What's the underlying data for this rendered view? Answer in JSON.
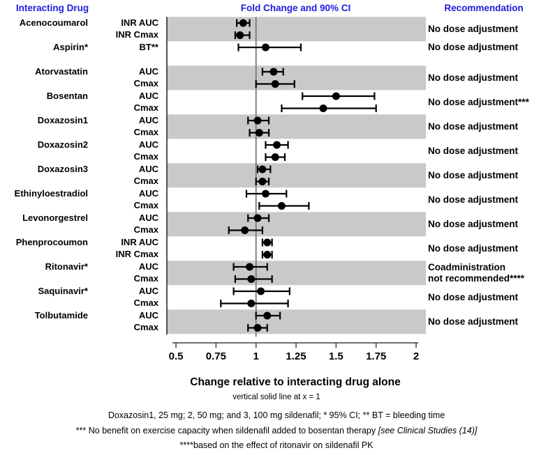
{
  "colors": {
    "header_blue": "#1c1ce0",
    "band_gray": "#c9c9c9",
    "marker_black": "#000000",
    "reference_line_gray": "#787878",
    "border_dark": "#3f3f3f"
  },
  "headers": {
    "left": "Interacting Drug",
    "center": "Fold Change and 90% CI",
    "right": "Recommendation"
  },
  "chart_data": {
    "type": "scatter",
    "subtype": "forest-plot-with-90pct-CI",
    "title": "Fold Change and 90% CI",
    "xlabel": "Change relative to interacting drug alone",
    "x_tick_labels": [
      "0.5",
      "0.75",
      "1",
      "1.25",
      "1.5",
      "1.75",
      "2"
    ],
    "x_tick_values": [
      0.5,
      0.75,
      1,
      1.25,
      1.5,
      1.75,
      2
    ],
    "xlim": [
      0.44,
      2.06
    ],
    "reference_line_x": 1,
    "grid": false,
    "rows": [
      {
        "drug": "Acenocoumarol",
        "metric": "INR AUC",
        "value": 0.92,
        "lo": 0.88,
        "hi": 0.96,
        "shaded": true,
        "spacer": false
      },
      {
        "drug": "",
        "metric": "INR Cmax",
        "value": 0.9,
        "lo": 0.87,
        "hi": 0.96,
        "shaded": true,
        "spacer": false
      },
      {
        "drug": "Aspirin*",
        "metric": "BT**",
        "value": 1.06,
        "lo": 0.89,
        "hi": 1.28,
        "shaded": false,
        "spacer": false
      },
      {
        "drug": "",
        "metric": "",
        "value": null,
        "lo": null,
        "hi": null,
        "shaded": false,
        "spacer": true
      },
      {
        "drug": "Atorvastatin",
        "metric": "AUC",
        "value": 1.11,
        "lo": 1.04,
        "hi": 1.17,
        "shaded": true,
        "spacer": false
      },
      {
        "drug": "",
        "metric": "Cmax",
        "value": 1.12,
        "lo": 1.0,
        "hi": 1.24,
        "shaded": true,
        "spacer": false
      },
      {
        "drug": "Bosentan",
        "metric": "AUC",
        "value": 1.5,
        "lo": 1.29,
        "hi": 1.74,
        "shaded": false,
        "spacer": false
      },
      {
        "drug": "",
        "metric": "Cmax",
        "value": 1.42,
        "lo": 1.16,
        "hi": 1.75,
        "shaded": false,
        "spacer": false
      },
      {
        "drug": "Doxazosin1",
        "metric": "AUC",
        "value": 1.01,
        "lo": 0.95,
        "hi": 1.08,
        "shaded": true,
        "spacer": false
      },
      {
        "drug": "",
        "metric": "Cmax",
        "value": 1.02,
        "lo": 0.96,
        "hi": 1.08,
        "shaded": true,
        "spacer": false
      },
      {
        "drug": "Doxazosin2",
        "metric": "AUC",
        "value": 1.13,
        "lo": 1.06,
        "hi": 1.2,
        "shaded": false,
        "spacer": false
      },
      {
        "drug": "",
        "metric": "Cmax",
        "value": 1.12,
        "lo": 1.06,
        "hi": 1.18,
        "shaded": false,
        "spacer": false
      },
      {
        "drug": "Doxazosin3",
        "metric": "AUC",
        "value": 1.04,
        "lo": 1.01,
        "hi": 1.09,
        "shaded": true,
        "spacer": false
      },
      {
        "drug": "",
        "metric": "Cmax",
        "value": 1.04,
        "lo": 1.0,
        "hi": 1.08,
        "shaded": true,
        "spacer": false
      },
      {
        "drug": "Ethinyloestradiol",
        "metric": "AUC",
        "value": 1.06,
        "lo": 0.94,
        "hi": 1.19,
        "shaded": false,
        "spacer": false
      },
      {
        "drug": "",
        "metric": "Cmax",
        "value": 1.16,
        "lo": 1.02,
        "hi": 1.33,
        "shaded": false,
        "spacer": false
      },
      {
        "drug": "Levonorgestrel",
        "metric": "AUC",
        "value": 1.01,
        "lo": 0.95,
        "hi": 1.08,
        "shaded": true,
        "spacer": false
      },
      {
        "drug": "",
        "metric": "Cmax",
        "value": 0.93,
        "lo": 0.83,
        "hi": 1.04,
        "shaded": true,
        "spacer": false
      },
      {
        "drug": "Phenprocoumon",
        "metric": "INR AUC",
        "value": 1.07,
        "lo": 1.04,
        "hi": 1.1,
        "shaded": false,
        "spacer": false
      },
      {
        "drug": "",
        "metric": "INR Cmax",
        "value": 1.07,
        "lo": 1.04,
        "hi": 1.1,
        "shaded": false,
        "spacer": false
      },
      {
        "drug": "Ritonavir*",
        "metric": "AUC",
        "value": 0.96,
        "lo": 0.86,
        "hi": 1.07,
        "shaded": true,
        "spacer": false
      },
      {
        "drug": "",
        "metric": "Cmax",
        "value": 0.97,
        "lo": 0.87,
        "hi": 1.1,
        "shaded": true,
        "spacer": false
      },
      {
        "drug": "Saquinavir*",
        "metric": "AUC",
        "value": 1.03,
        "lo": 0.86,
        "hi": 1.21,
        "shaded": false,
        "spacer": false
      },
      {
        "drug": "",
        "metric": "Cmax",
        "value": 0.97,
        "lo": 0.78,
        "hi": 1.2,
        "shaded": false,
        "spacer": false
      },
      {
        "drug": "Tolbutamide",
        "metric": "AUC",
        "value": 1.07,
        "lo": 1.0,
        "hi": 1.15,
        "shaded": true,
        "spacer": false
      },
      {
        "drug": "",
        "metric": "Cmax",
        "value": 1.01,
        "lo": 0.95,
        "hi": 1.07,
        "shaded": true,
        "spacer": false
      }
    ],
    "recommendations": [
      {
        "first_row": 0,
        "last_row": 1,
        "lines": [
          "No dose adjustment"
        ]
      },
      {
        "first_row": 2,
        "last_row": 2,
        "lines": [
          "No dose adjustment"
        ]
      },
      {
        "first_row": 4,
        "last_row": 5,
        "lines": [
          "No dose adjustment"
        ]
      },
      {
        "first_row": 6,
        "last_row": 7,
        "lines": [
          "No dose adjustment***"
        ]
      },
      {
        "first_row": 8,
        "last_row": 9,
        "lines": [
          "No dose adjustment"
        ]
      },
      {
        "first_row": 10,
        "last_row": 11,
        "lines": [
          "No dose adjustment"
        ]
      },
      {
        "first_row": 12,
        "last_row": 13,
        "lines": [
          "No dose adjustment"
        ]
      },
      {
        "first_row": 14,
        "last_row": 15,
        "lines": [
          "No dose adjustment"
        ]
      },
      {
        "first_row": 16,
        "last_row": 17,
        "lines": [
          "No dose adjustment"
        ]
      },
      {
        "first_row": 18,
        "last_row": 19,
        "lines": [
          "No dose adjustment"
        ]
      },
      {
        "first_row": 20,
        "last_row": 21,
        "lines": [
          "Coadministration",
          "not recommended****"
        ]
      },
      {
        "first_row": 22,
        "last_row": 23,
        "lines": [
          "No dose adjustment"
        ]
      },
      {
        "first_row": 24,
        "last_row": 25,
        "lines": [
          "No dose adjustment"
        ]
      }
    ]
  },
  "footnotes": {
    "f1": "vertical solid line at x = 1",
    "f2": "Doxazosin1, 25 mg; 2, 50 mg; and 3, 100 mg sildenafil; * 95% CI; ** BT = bleeding time",
    "f3_plain": "*** No benefit on exercise capacity when sildenafil added to bosentan therapy ",
    "f3_italic": " [see Clinical Studies (14)]",
    "f4": "****based on the effect of ritonavir on sildenafil PK"
  }
}
